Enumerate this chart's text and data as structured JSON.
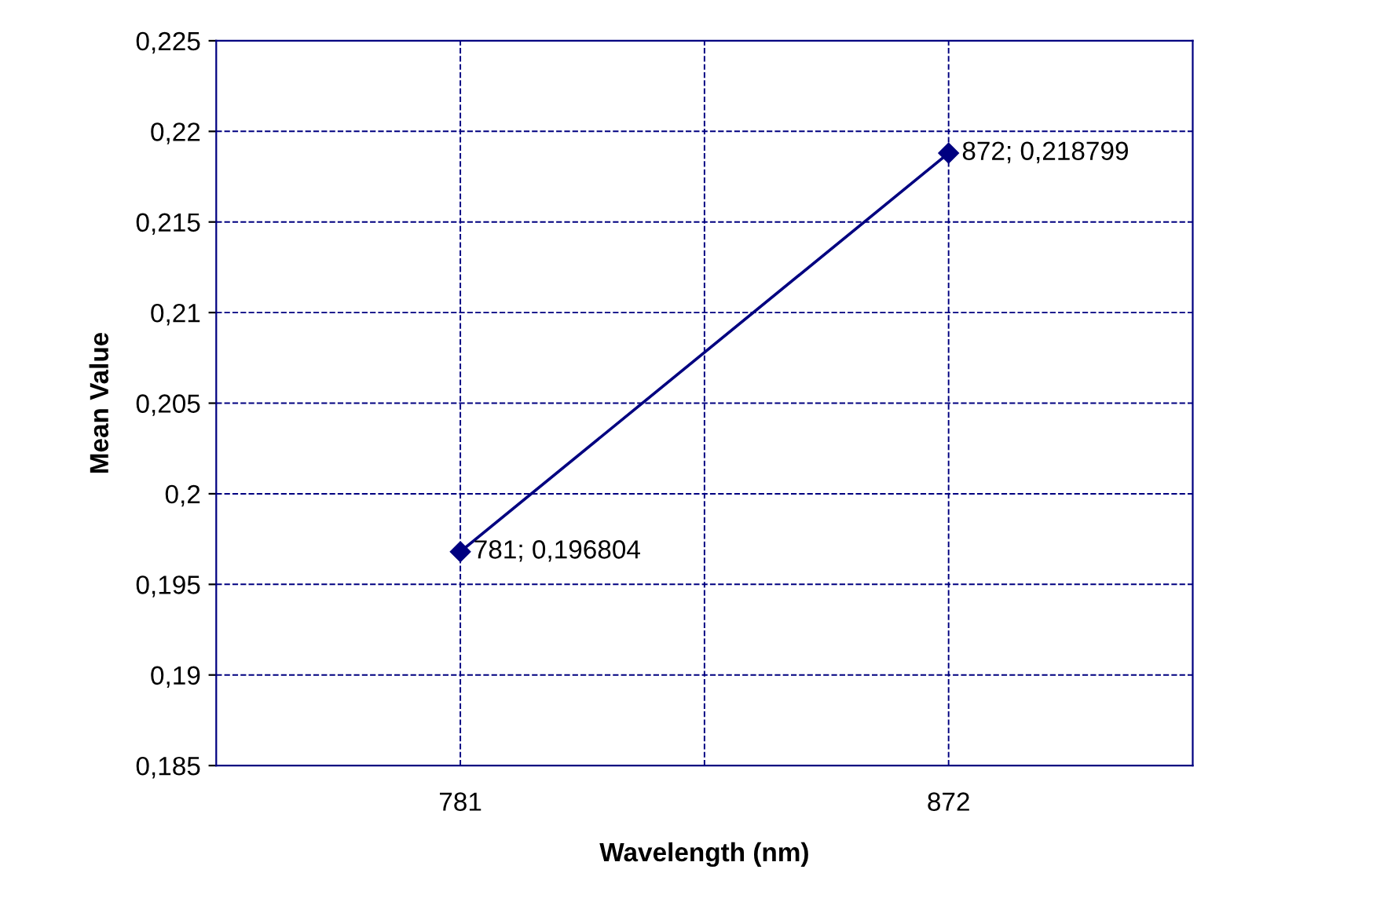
{
  "chart_data": {
    "type": "line",
    "xlabel": "Wavelength (nm)",
    "ylabel": "Mean Value",
    "categories": [
      "781",
      "872"
    ],
    "series": [
      {
        "color": "#000080",
        "values": [
          0.196804,
          0.218799
        ],
        "value_labels": [
          "781; 0,196804",
          "872; 0,218799"
        ]
      }
    ],
    "ylim": [
      0.185,
      0.225
    ],
    "yticks": [
      {
        "value": 0.185,
        "label": "0,185"
      },
      {
        "value": 0.19,
        "label": "0,19"
      },
      {
        "value": 0.195,
        "label": "0,195"
      },
      {
        "value": 0.2,
        "label": "0,2"
      },
      {
        "value": 0.205,
        "label": "0,205"
      },
      {
        "value": 0.21,
        "label": "0,21"
      },
      {
        "value": 0.215,
        "label": "0,215"
      },
      {
        "value": 0.22,
        "label": "0,22"
      },
      {
        "value": 0.225,
        "label": "0,225"
      }
    ],
    "grid": true,
    "marker": "diamond",
    "line_style": "solid"
  }
}
